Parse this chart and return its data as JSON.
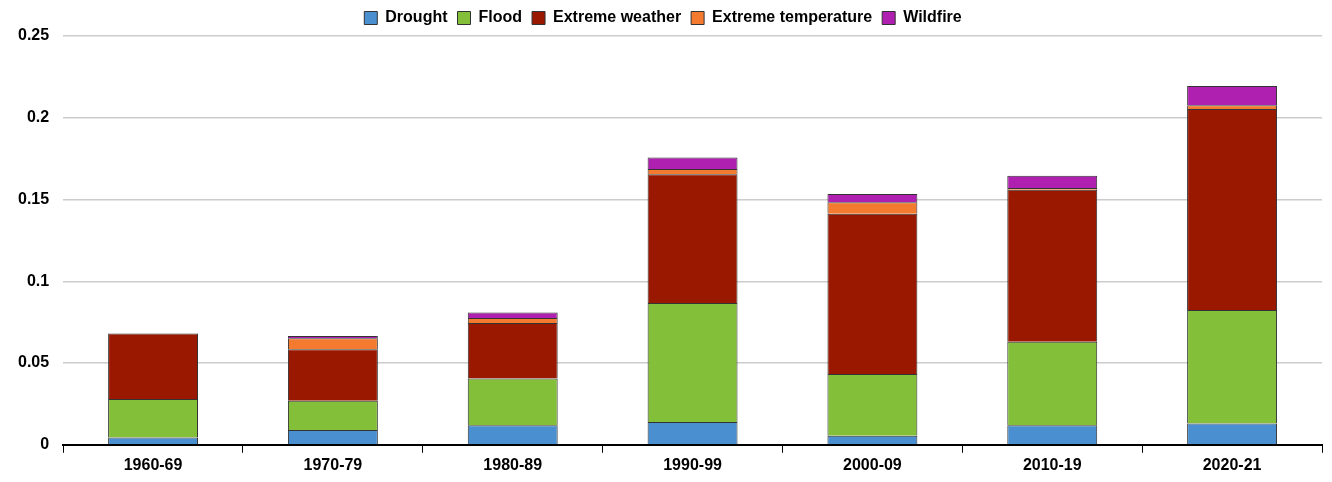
{
  "chart_data": {
    "type": "bar",
    "stacked": true,
    "categories": [
      "1960-69",
      "1970-79",
      "1980-89",
      "1990-99",
      "2000-09",
      "2010-19",
      "2020-21"
    ],
    "series": [
      {
        "name": "Drought",
        "color": "#4a8fd0",
        "values": [
          0.0045,
          0.009,
          0.012,
          0.014,
          0.0055,
          0.012,
          0.013
        ]
      },
      {
        "name": "Flood",
        "color": "#84bf3a",
        "values": [
          0.0235,
          0.018,
          0.0285,
          0.0727,
          0.0378,
          0.051,
          0.0694
        ]
      },
      {
        "name": "Extreme weather",
        "color": "#9b1800",
        "values": [
          0.04,
          0.0315,
          0.034,
          0.0788,
          0.098,
          0.093,
          0.123
        ]
      },
      {
        "name": "Extreme temperature",
        "color": "#f47a30",
        "values": [
          0,
          0.0067,
          0.003,
          0.0031,
          0.007,
          0.001,
          0.0023
        ]
      },
      {
        "name": "Wildfire",
        "color": "#b020b0",
        "values": [
          0,
          0.0013,
          0.0034,
          0.0071,
          0.005,
          0.0076,
          0.0117
        ]
      }
    ],
    "ylim": [
      0,
      0.25
    ],
    "yticks": [
      0,
      0.05,
      0.1,
      0.15,
      0.2,
      0.25
    ],
    "grid": "y",
    "legend": "top"
  }
}
